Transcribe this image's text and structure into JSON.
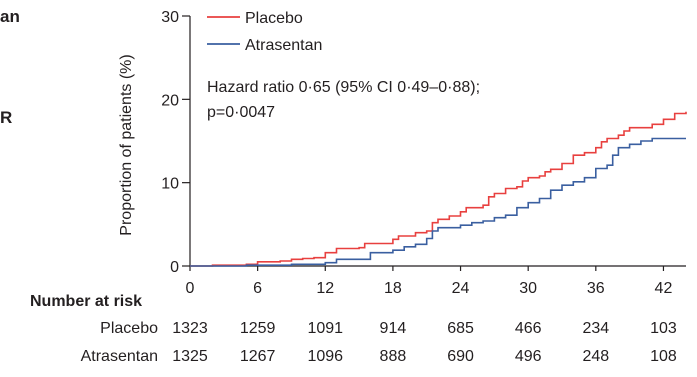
{
  "page": {
    "edge_fragments": [
      "an",
      "R"
    ]
  },
  "chart_data": {
    "type": "line",
    "title": "",
    "xlabel": "",
    "ylabel": "Proportion of patients (%)",
    "xlim": [
      0,
      44
    ],
    "ylim": [
      0,
      30
    ],
    "x_ticks": [
      0,
      6,
      12,
      18,
      24,
      30,
      36,
      42
    ],
    "y_ticks": [
      0,
      10,
      20,
      30
    ],
    "grid": false,
    "legend": {
      "placement": "top-left"
    },
    "annotation": [
      "Hazard ratio 0·65 (95% CI 0·49–0·88);",
      "p=0·0047"
    ],
    "series": [
      {
        "name": "Placebo",
        "color": "#e8403f",
        "points": [
          [
            0,
            0
          ],
          [
            2,
            0.1
          ],
          [
            5,
            0.2
          ],
          [
            6,
            0.5
          ],
          [
            8,
            0.6
          ],
          [
            9,
            0.8
          ],
          [
            10,
            0.9
          ],
          [
            11,
            1.0
          ],
          [
            12,
            1.6
          ],
          [
            13,
            2.1
          ],
          [
            15,
            2.2
          ],
          [
            15.5,
            2.7
          ],
          [
            18,
            3.2
          ],
          [
            18.5,
            3.6
          ],
          [
            20,
            4.0
          ],
          [
            21,
            4.2
          ],
          [
            21.5,
            5.2
          ],
          [
            22,
            5.6
          ],
          [
            23,
            6.0
          ],
          [
            24,
            6.5
          ],
          [
            24.5,
            7.0
          ],
          [
            26,
            7.3
          ],
          [
            26.5,
            8.3
          ],
          [
            27,
            8.7
          ],
          [
            28,
            9.3
          ],
          [
            29,
            9.5
          ],
          [
            29.5,
            10.2
          ],
          [
            30,
            10.6
          ],
          [
            31,
            10.8
          ],
          [
            31.5,
            11.3
          ],
          [
            32,
            11.6
          ],
          [
            33,
            12.3
          ],
          [
            34,
            13.3
          ],
          [
            35,
            13.6
          ],
          [
            36,
            14.2
          ],
          [
            36.5,
            14.9
          ],
          [
            37,
            15.3
          ],
          [
            38,
            15.7
          ],
          [
            38.5,
            16.2
          ],
          [
            39,
            16.6
          ],
          [
            41,
            17.0
          ],
          [
            42,
            17.6
          ],
          [
            43,
            18.3
          ],
          [
            44,
            18.5
          ]
        ]
      },
      {
        "name": "Atrasentan",
        "color": "#3a5fa0",
        "points": [
          [
            0,
            0
          ],
          [
            5,
            0.1
          ],
          [
            9,
            0.2
          ],
          [
            12,
            0.4
          ],
          [
            13,
            0.8
          ],
          [
            15,
            0.8
          ],
          [
            16,
            1.6
          ],
          [
            18,
            1.9
          ],
          [
            19,
            2.3
          ],
          [
            20,
            2.6
          ],
          [
            21,
            3.3
          ],
          [
            21.5,
            4.2
          ],
          [
            22,
            4.6
          ],
          [
            24,
            4.9
          ],
          [
            25,
            5.2
          ],
          [
            26,
            5.4
          ],
          [
            27,
            5.8
          ],
          [
            28,
            6.1
          ],
          [
            29,
            7.0
          ],
          [
            30,
            7.6
          ],
          [
            31,
            8.1
          ],
          [
            32,
            9.1
          ],
          [
            33,
            9.7
          ],
          [
            34,
            10.1
          ],
          [
            35,
            10.6
          ],
          [
            36,
            11.7
          ],
          [
            37,
            12.1
          ],
          [
            37.5,
            13.3
          ],
          [
            38,
            14.2
          ],
          [
            39,
            14.6
          ],
          [
            40,
            15.0
          ],
          [
            41,
            15.3
          ],
          [
            44,
            15.3
          ]
        ]
      }
    ],
    "number_at_risk": {
      "title": "Number at risk",
      "rows": [
        {
          "name": "Placebo",
          "values": [
            "1323",
            "1259",
            "1091",
            "914",
            "685",
            "466",
            "234",
            "103"
          ]
        },
        {
          "name": "Atrasentan",
          "values": [
            "1325",
            "1267",
            "1096",
            "888",
            "690",
            "496",
            "248",
            "108"
          ]
        }
      ]
    }
  }
}
